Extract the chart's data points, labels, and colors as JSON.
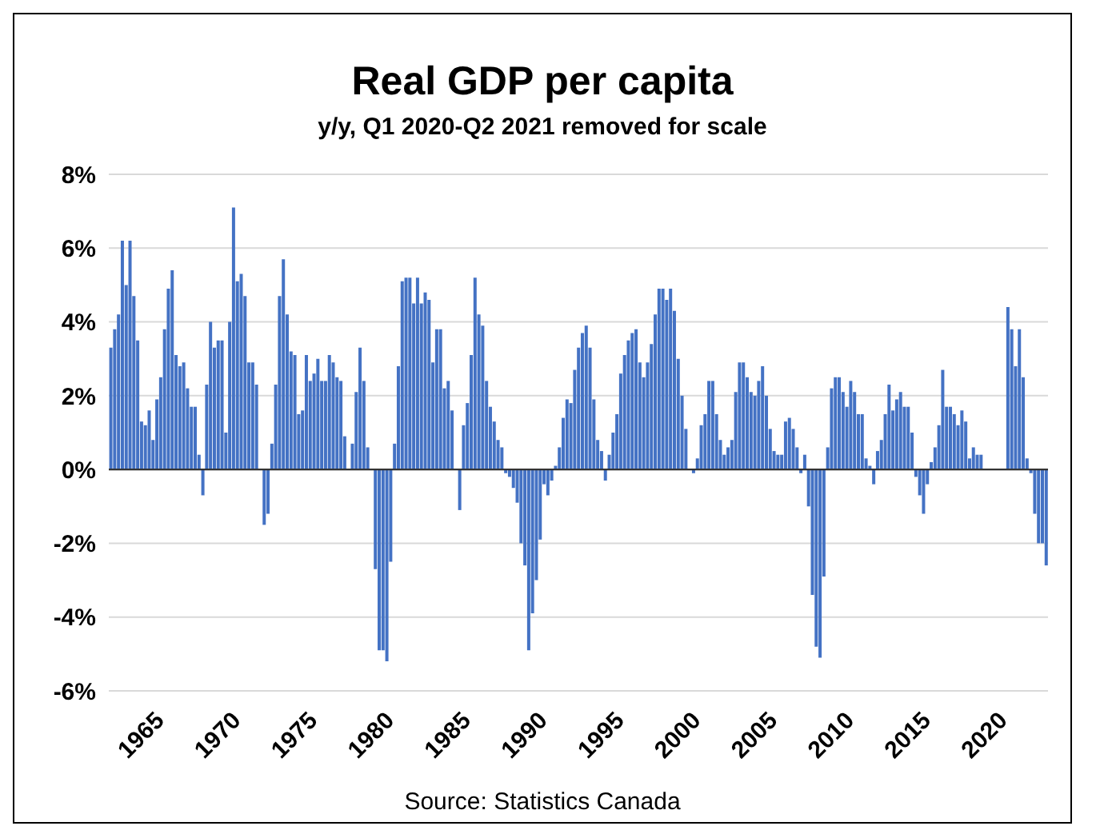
{
  "chart_data": {
    "type": "bar",
    "title": "Real GDP per capita",
    "subtitle": "y/y, Q1 2020-Q2 2021 removed for scale",
    "categories": [
      null,
      null,
      null,
      null,
      null,
      null,
      null,
      null,
      "1965",
      null,
      null,
      null,
      null,
      null,
      null,
      null,
      null,
      null,
      null,
      null,
      null,
      null,
      null,
      null,
      null,
      null,
      null,
      null,
      "1970",
      null,
      null,
      null,
      null,
      null,
      null,
      null,
      null,
      null,
      null,
      null,
      null,
      null,
      null,
      null,
      null,
      null,
      null,
      null,
      "1975",
      null,
      null,
      null,
      null,
      null,
      null,
      null,
      null,
      null,
      null,
      null,
      null,
      null,
      null,
      null,
      null,
      null,
      null,
      null,
      "1980",
      null,
      null,
      null,
      null,
      null,
      null,
      null,
      null,
      null,
      null,
      null,
      null,
      null,
      null,
      null,
      null,
      null,
      null,
      null,
      "1985",
      null,
      null,
      null,
      null,
      null,
      null,
      null,
      null,
      null,
      null,
      null,
      null,
      null,
      null,
      null,
      null,
      null,
      null,
      null,
      "1990",
      null,
      null,
      null,
      null,
      null,
      null,
      null,
      null,
      null,
      null,
      null,
      null,
      null,
      null,
      null,
      null,
      null,
      null,
      null,
      "1995",
      null,
      null,
      null,
      null,
      null,
      null,
      null,
      null,
      null,
      null,
      null,
      null,
      null,
      null,
      null,
      null,
      null,
      null,
      null,
      "2000",
      null,
      null,
      null,
      null,
      null,
      null,
      null,
      null,
      null,
      null,
      null,
      null,
      null,
      null,
      null,
      null,
      null,
      null,
      null,
      "2005",
      null,
      null,
      null,
      null,
      null,
      null,
      null,
      null,
      null,
      null,
      null,
      null,
      null,
      null,
      null,
      null,
      null,
      null,
      null,
      "2010",
      null,
      null,
      null,
      null,
      null,
      null,
      null,
      null,
      null,
      null,
      null,
      null,
      null,
      null,
      null,
      null,
      null,
      null,
      null,
      "2015",
      null,
      null,
      null,
      null,
      null,
      null,
      null,
      null,
      null,
      null,
      null,
      null,
      null,
      null,
      null,
      null,
      null,
      null,
      null,
      "2020",
      null,
      null,
      null,
      null,
      null,
      null,
      null,
      null,
      null,
      null,
      null,
      null,
      null,
      null,
      null,
      null
    ],
    "values": [
      3.3,
      3.8,
      4.2,
      6.2,
      5.0,
      6.2,
      4.7,
      3.5,
      1.3,
      1.2,
      1.6,
      0.8,
      1.9,
      2.5,
      3.8,
      4.9,
      5.4,
      3.1,
      2.8,
      2.9,
      2.2,
      1.7,
      1.7,
      0.4,
      -0.7,
      2.3,
      4.0,
      3.3,
      3.5,
      3.5,
      1.0,
      4.0,
      7.1,
      5.1,
      5.3,
      4.7,
      2.9,
      2.9,
      2.3,
      0.0,
      -1.5,
      -1.2,
      0.7,
      2.3,
      4.7,
      5.7,
      4.2,
      3.2,
      3.1,
      1.5,
      1.6,
      3.1,
      2.4,
      2.6,
      3.0,
      2.4,
      2.4,
      3.1,
      2.9,
      2.5,
      2.4,
      0.9,
      0.0,
      0.7,
      2.1,
      3.3,
      2.4,
      0.6,
      0.0,
      -2.7,
      -4.9,
      -4.9,
      -5.2,
      -2.5,
      0.7,
      2.8,
      5.1,
      5.2,
      5.2,
      4.5,
      5.2,
      4.5,
      4.8,
      4.6,
      2.9,
      3.8,
      3.8,
      2.2,
      2.4,
      1.6,
      0.0,
      -1.1,
      1.2,
      1.8,
      3.1,
      5.2,
      4.2,
      3.9,
      2.4,
      1.7,
      1.3,
      0.8,
      0.6,
      -0.1,
      -0.2,
      -0.5,
      -0.9,
      -2.0,
      -2.6,
      -4.9,
      -3.9,
      -3.0,
      -1.9,
      -0.4,
      -0.7,
      -0.3,
      0.1,
      0.6,
      1.4,
      1.9,
      1.8,
      2.7,
      3.3,
      3.7,
      3.9,
      3.3,
      1.9,
      0.8,
      0.5,
      -0.3,
      0.4,
      1.0,
      1.5,
      2.6,
      3.1,
      3.5,
      3.7,
      3.8,
      2.9,
      2.5,
      2.9,
      3.4,
      4.2,
      4.9,
      4.9,
      4.6,
      4.9,
      4.3,
      3.0,
      2.0,
      1.1,
      0.0,
      -0.1,
      0.3,
      1.2,
      1.5,
      2.4,
      2.4,
      1.5,
      0.8,
      0.4,
      0.6,
      0.8,
      2.1,
      2.9,
      2.9,
      2.5,
      2.1,
      2.0,
      2.4,
      2.8,
      2.0,
      1.1,
      0.5,
      0.4,
      0.4,
      1.3,
      1.4,
      1.1,
      0.6,
      -0.1,
      0.4,
      -1.0,
      -3.4,
      -4.8,
      -5.1,
      -2.9,
      0.6,
      2.2,
      2.5,
      2.5,
      2.1,
      1.7,
      2.4,
      2.1,
      1.5,
      1.5,
      0.3,
      0.1,
      -0.4,
      0.5,
      0.8,
      1.5,
      2.3,
      1.6,
      1.9,
      2.1,
      1.7,
      1.7,
      1.0,
      -0.2,
      -0.7,
      -1.2,
      -0.4,
      0.2,
      0.6,
      1.2,
      2.7,
      1.7,
      1.7,
      1.5,
      1.2,
      1.6,
      1.3,
      0.3,
      0.6,
      0.4,
      0.4,
      null,
      null,
      null,
      null,
      null,
      null,
      4.4,
      3.8,
      2.8,
      3.8,
      2.5,
      0.3,
      -0.1,
      -1.2,
      -2.0,
      -2.0,
      -2.6
    ],
    "color": "#4472c4",
    "ylim": [
      -6,
      8
    ],
    "yticks": [
      {
        "value": -6,
        "label": "-6%"
      },
      {
        "value": -4,
        "label": "-4%"
      },
      {
        "value": -2,
        "label": "-2%"
      },
      {
        "value": 0,
        "label": "0%"
      },
      {
        "value": 2,
        "label": "2%"
      },
      {
        "value": 4,
        "label": "4%"
      },
      {
        "value": 6,
        "label": "6%"
      },
      {
        "value": 8,
        "label": "8%"
      }
    ],
    "grid": "y",
    "annotations": [
      "Source: Statistics Canada"
    ]
  }
}
